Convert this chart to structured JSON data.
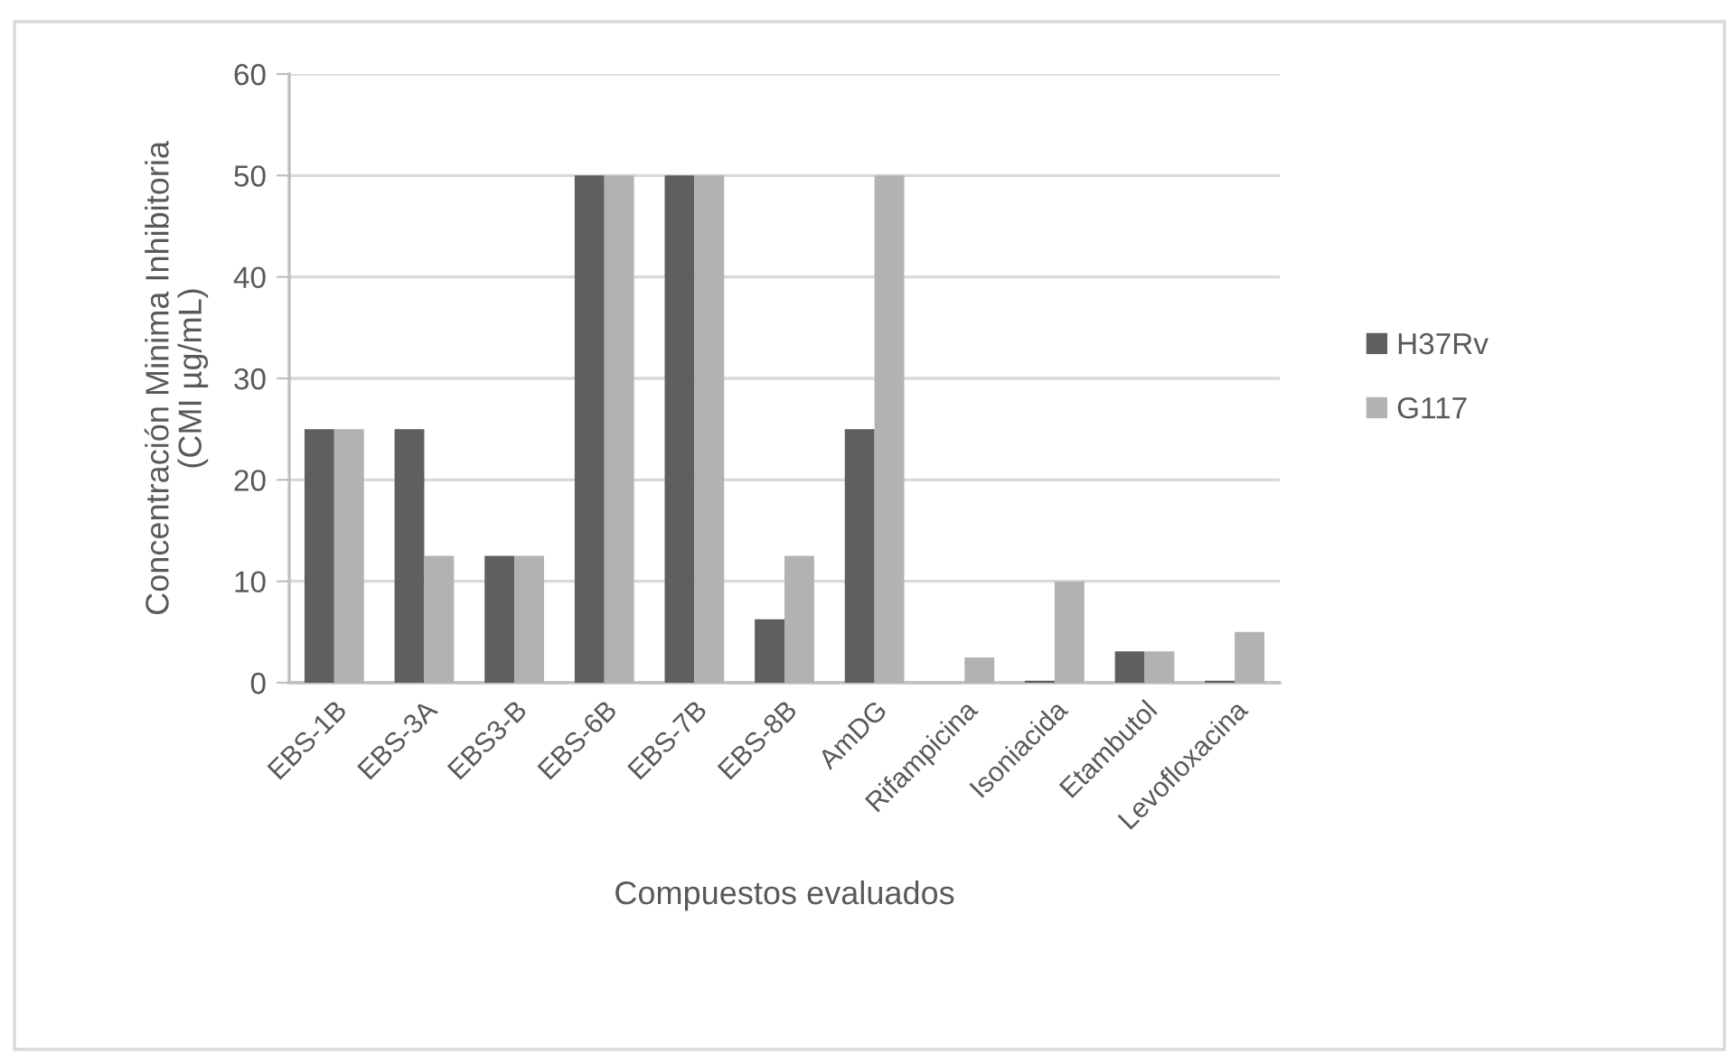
{
  "chart_data": {
    "type": "bar",
    "xlabel": "Compuestos evaluados",
    "ylabel": "Concentración Minima Inhibitoria\n(CMI µg/mL)",
    "categories": [
      "EBS-1B",
      "EBS-3A",
      "EBS3-B",
      "EBS-6B",
      "EBS-7B",
      "EBS-8B",
      "AmDG",
      "Rifampicina",
      "Isoniacida",
      "Etambutol",
      "Levofloxacina"
    ],
    "series": [
      {
        "name": "H37Rv",
        "color": "#5f5f5f",
        "values": [
          25,
          25,
          12.5,
          50,
          50,
          6.25,
          25,
          null,
          0.2,
          3.1,
          0.2
        ]
      },
      {
        "name": "G117",
        "color": "#b2b2b2",
        "values": [
          25,
          12.5,
          12.5,
          50,
          50,
          12.5,
          50,
          2.5,
          10,
          3.1,
          5
        ]
      }
    ],
    "ylim": [
      0,
      60
    ],
    "yticks": [
      0,
      10,
      20,
      30,
      40,
      50,
      60
    ],
    "grid": "y",
    "legend": "right"
  }
}
